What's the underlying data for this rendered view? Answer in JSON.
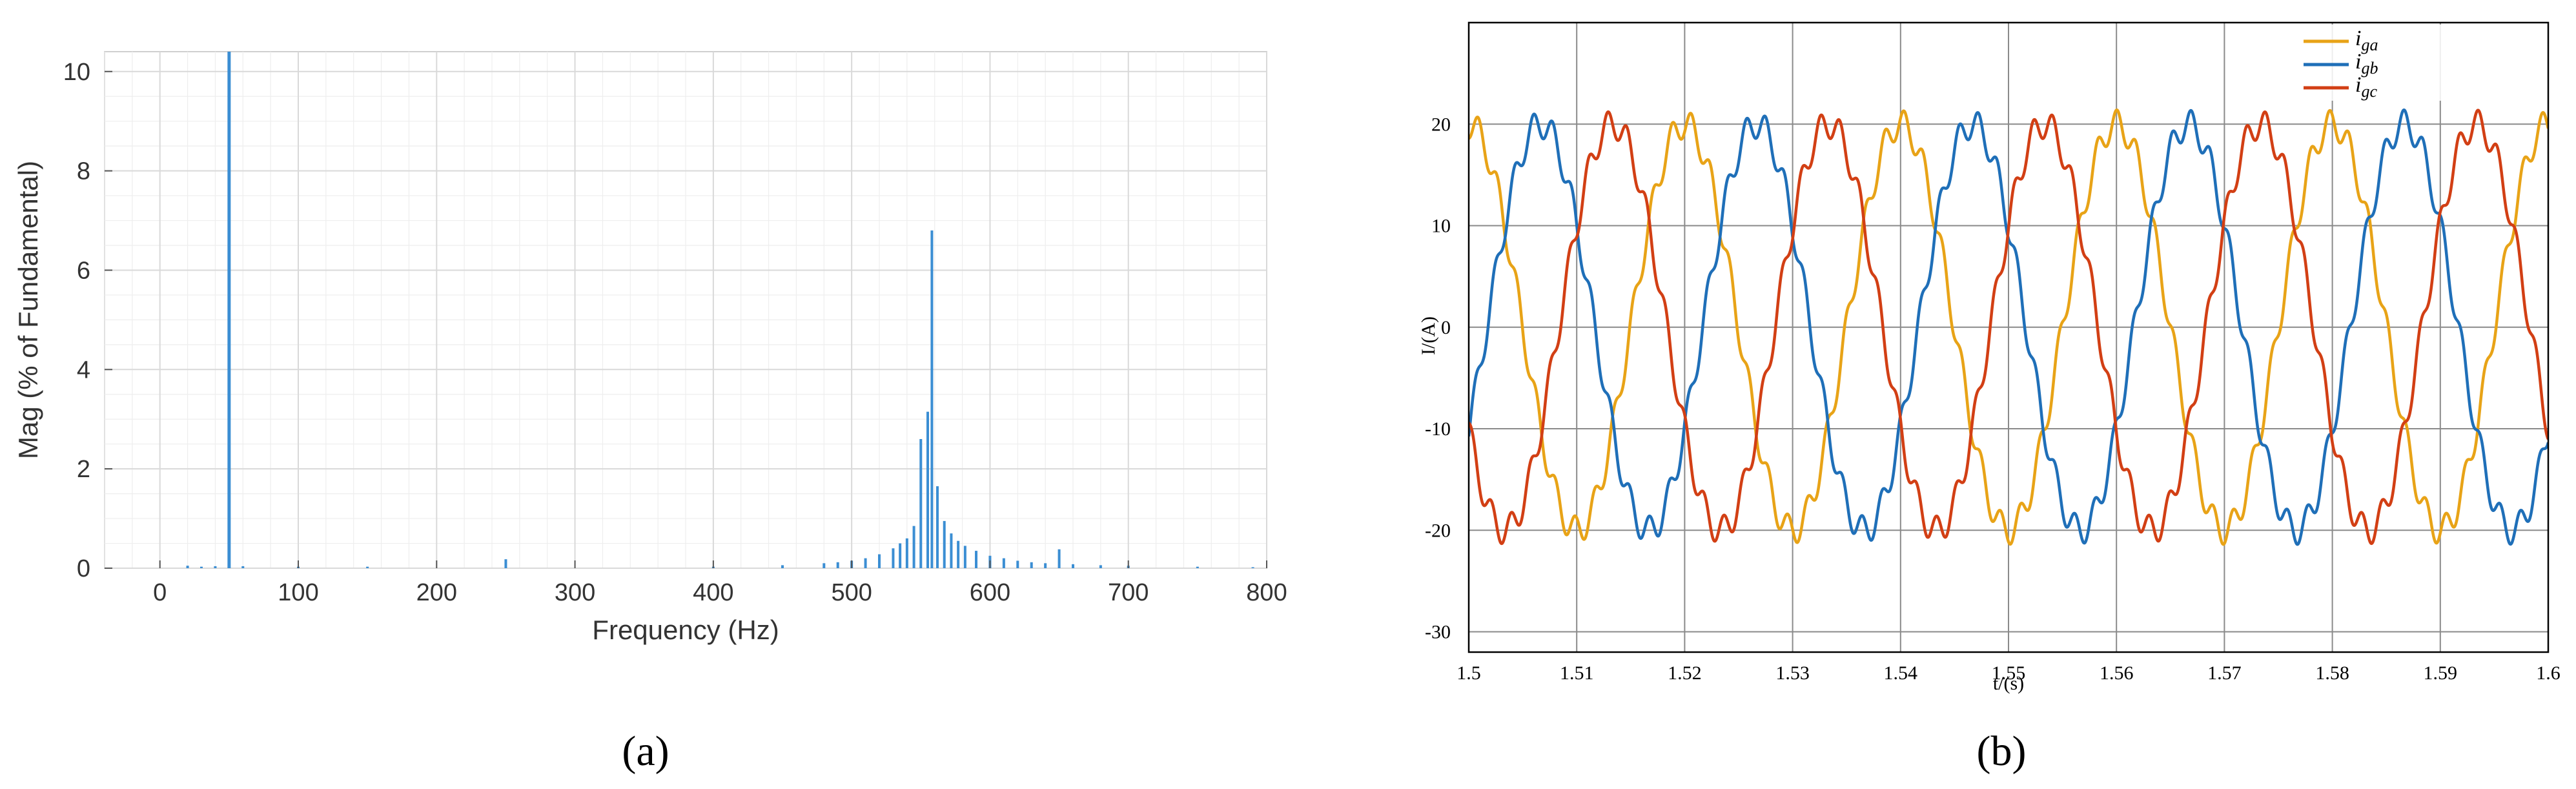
{
  "chart_data": [
    {
      "type": "bar",
      "xlabel": "Frequency (Hz)",
      "ylabel": "Mag (% of Fundamental)",
      "xlim": [
        -40,
        800
      ],
      "ylim": [
        0,
        10.4
      ],
      "xticks": [
        "0",
        "100",
        "200",
        "300",
        "400",
        "500",
        "600",
        "700",
        "800"
      ],
      "yticks": [
        "0",
        "2",
        "4",
        "6",
        "8",
        "10"
      ],
      "grid": true,
      "minor_grid": true,
      "color": "#3b8ed3",
      "panel_label": "(a)",
      "bars": [
        {
          "x": 20,
          "y": 0.05
        },
        {
          "x": 30,
          "y": 0.03
        },
        {
          "x": 40,
          "y": 0.04
        },
        {
          "x": 50,
          "y": 10.4
        },
        {
          "x": 60,
          "y": 0.04
        },
        {
          "x": 100,
          "y": 0.03
        },
        {
          "x": 150,
          "y": 0.03
        },
        {
          "x": 250,
          "y": 0.18
        },
        {
          "x": 400,
          "y": 0.03
        },
        {
          "x": 450,
          "y": 0.06
        },
        {
          "x": 480,
          "y": 0.1
        },
        {
          "x": 490,
          "y": 0.12
        },
        {
          "x": 500,
          "y": 0.15
        },
        {
          "x": 510,
          "y": 0.2
        },
        {
          "x": 520,
          "y": 0.28
        },
        {
          "x": 530,
          "y": 0.4
        },
        {
          "x": 535,
          "y": 0.5
        },
        {
          "x": 540,
          "y": 0.6
        },
        {
          "x": 545,
          "y": 0.85
        },
        {
          "x": 550,
          "y": 2.6
        },
        {
          "x": 555,
          "y": 3.15
        },
        {
          "x": 558,
          "y": 6.8
        },
        {
          "x": 562,
          "y": 1.65
        },
        {
          "x": 567,
          "y": 0.95
        },
        {
          "x": 572,
          "y": 0.7
        },
        {
          "x": 577,
          "y": 0.55
        },
        {
          "x": 582,
          "y": 0.45
        },
        {
          "x": 590,
          "y": 0.35
        },
        {
          "x": 600,
          "y": 0.25
        },
        {
          "x": 610,
          "y": 0.2
        },
        {
          "x": 620,
          "y": 0.15
        },
        {
          "x": 630,
          "y": 0.12
        },
        {
          "x": 640,
          "y": 0.1
        },
        {
          "x": 650,
          "y": 0.38
        },
        {
          "x": 660,
          "y": 0.08
        },
        {
          "x": 680,
          "y": 0.06
        },
        {
          "x": 700,
          "y": 0.05
        },
        {
          "x": 750,
          "y": 0.03
        },
        {
          "x": 790,
          "y": 0.02
        }
      ]
    },
    {
      "type": "line",
      "xlabel": "t/(s)",
      "ylabel": "I/(A)",
      "xlim": [
        1.5,
        1.6
      ],
      "ylim": [
        -32,
        30
      ],
      "xticks": [
        "1.5",
        "1.51",
        "1.52",
        "1.53",
        "1.54",
        "1.55",
        "1.56",
        "1.57",
        "1.58",
        "1.59",
        "1.6"
      ],
      "yticks": [
        "20",
        "10",
        "0",
        "-10",
        "-20",
        "-30"
      ],
      "grid": true,
      "legend_position": "top-right",
      "panel_label": "(b)",
      "waveform": {
        "fundamental_hz": 50,
        "fundamental_amplitude": 20,
        "harmonic_hz": 558,
        "harmonic_amplitude": 1.4
      },
      "series": [
        {
          "name": "i",
          "sub": "ga",
          "color": "#e8a317",
          "phase_deg": 90
        },
        {
          "name": "i",
          "sub": "gb",
          "color": "#1f6fb8",
          "phase_deg": -30
        },
        {
          "name": "i",
          "sub": "gc",
          "color": "#d23f14",
          "phase_deg": -150
        }
      ]
    }
  ]
}
